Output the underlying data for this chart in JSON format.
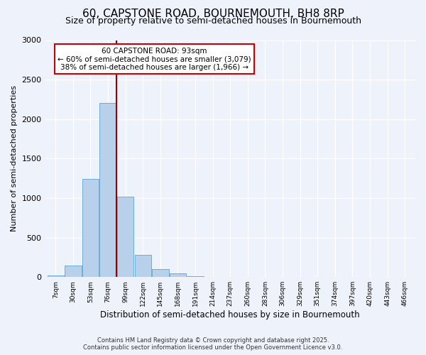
{
  "title": "60, CAPSTONE ROAD, BOURNEMOUTH, BH8 8RP",
  "subtitle": "Size of property relative to semi-detached houses in Bournemouth",
  "xlabel": "Distribution of semi-detached houses by size in Bournemouth",
  "ylabel": "Number of semi-detached properties",
  "bar_labels": [
    "7sqm",
    "30sqm",
    "53sqm",
    "76sqm",
    "99sqm",
    "122sqm",
    "145sqm",
    "168sqm",
    "191sqm",
    "214sqm",
    "237sqm",
    "260sqm",
    "283sqm",
    "306sqm",
    "329sqm",
    "351sqm",
    "374sqm",
    "397sqm",
    "420sqm",
    "443sqm",
    "466sqm"
  ],
  "bar_values": [
    20,
    145,
    1240,
    2200,
    1020,
    285,
    100,
    50,
    15,
    5,
    3,
    0,
    0,
    0,
    0,
    0,
    0,
    0,
    0,
    0,
    0
  ],
  "bar_color": "#b8d0ea",
  "bar_edge_color": "#6aaed6",
  "annotation_title": "60 CAPSTONE ROAD: 93sqm",
  "annotation_line1": "← 60% of semi-detached houses are smaller (3,079)",
  "annotation_line2": "38% of semi-detached houses are larger (1,966) →",
  "annotation_box_color": "#ffffff",
  "annotation_box_edge": "#cc0000",
  "property_line_color": "#990000",
  "background_color": "#eef2fa",
  "plot_bg_color": "#eef2fa",
  "grid_color": "#ffffff",
  "footer1": "Contains HM Land Registry data © Crown copyright and database right 2025.",
  "footer2": "Contains public sector information licensed under the Open Government Licence v3.0.",
  "ylim": [
    0,
    3000
  ],
  "title_fontsize": 11,
  "subtitle_fontsize": 9
}
